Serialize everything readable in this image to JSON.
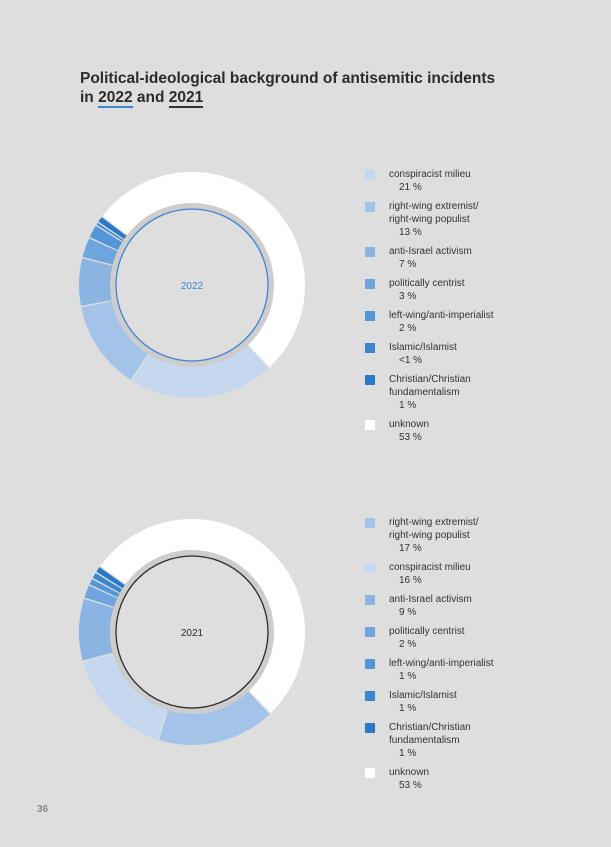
{
  "title": {
    "line1": "Political-ideological background of antisemitic incidents",
    "prefix": "in ",
    "year_a": "2022",
    "middle": " and ",
    "year_b": "2021"
  },
  "page_number": "36",
  "colors": {
    "background": "#dedede",
    "ring_track": "#cdcdcd",
    "circle_2022": "#3d86cf",
    "circle_2021": "#2b2b2b",
    "center_text_2022": "#3d86cf",
    "center_text_2021": "#2b2b2b",
    "category_colors": {
      "conspiracist milieu": "#c5d8f0",
      "right-wing extremist/\nright-wing populist": "#a3c3e8",
      "anti-Israel activism": "#8cb4e2",
      "politically centrist": "#6ea5df",
      "left-wing/anti-imperialist": "#5296d8",
      "Islamic/Islamist": "#3a87d0",
      "Christian/Christian\nfundamentalism": "#2a78c6",
      "unknown": "#ffffff"
    }
  },
  "chart_data": [
    {
      "type": "pie",
      "center_label": "2022",
      "legend_position": "right",
      "categories": [
        "conspiracist milieu",
        "right-wing extremist/\nright-wing populist",
        "anti-Israel activism",
        "politically centrist",
        "left-wing/anti-imperialist",
        "Islamic/Islamist",
        "Christian/Christian\nfundamentalism",
        "unknown"
      ],
      "values": [
        21,
        13,
        7,
        3,
        2,
        0.5,
        1,
        53
      ],
      "value_labels": [
        "21 %",
        "13 %",
        "7 %",
        "3 %",
        "2 %",
        "<1 %",
        "1 %",
        "53 %"
      ]
    },
    {
      "type": "pie",
      "center_label": "2021",
      "legend_position": "right",
      "categories": [
        "right-wing extremist/\nright-wing populist",
        "conspiracist milieu",
        "anti-Israel activism",
        "politically centrist",
        "left-wing/anti-imperialist",
        "Islamic/Islamist",
        "Christian/Christian\nfundamentalism",
        "unknown"
      ],
      "values": [
        17,
        16,
        9,
        2,
        1,
        1,
        1,
        53
      ],
      "value_labels": [
        "17 %",
        "16 %",
        "9 %",
        "2 %",
        "1 %",
        "1 %",
        "1 %",
        "53 %"
      ]
    }
  ]
}
